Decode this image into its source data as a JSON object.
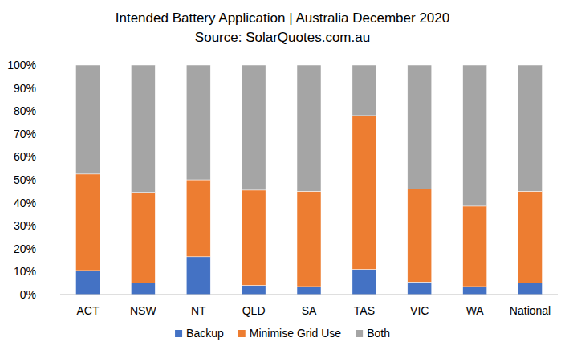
{
  "chart_data": {
    "type": "bar",
    "stacked": true,
    "title": "Intended Battery Application | Australia December 2020",
    "subtitle": "Source: SolarQuotes.com.au",
    "categories": [
      "ACT",
      "NSW",
      "NT",
      "QLD",
      "SA",
      "TAS",
      "VIC",
      "WA",
      "National"
    ],
    "series": [
      {
        "name": "Backup",
        "color": "#4472c4",
        "values": [
          10.5,
          5,
          16.5,
          4,
          3.5,
          11,
          5.5,
          3.5,
          5
        ]
      },
      {
        "name": "Minimise Grid Use",
        "color": "#ed7d31",
        "values": [
          42,
          39.5,
          33.5,
          41.5,
          41.5,
          67,
          40.5,
          35,
          40
        ]
      },
      {
        "name": "Both",
        "color": "#a5a5a5",
        "values": [
          47.5,
          55.5,
          50,
          54.5,
          55,
          22,
          54,
          61.5,
          55
        ]
      }
    ],
    "ylim": [
      0,
      100
    ],
    "yticks": [
      {
        "value": 0,
        "label": "0%"
      },
      {
        "value": 10,
        "label": "10%"
      },
      {
        "value": 20,
        "label": "20%"
      },
      {
        "value": 30,
        "label": "30%"
      },
      {
        "value": 40,
        "label": "40%"
      },
      {
        "value": 50,
        "label": "50%"
      },
      {
        "value": 60,
        "label": "60%"
      },
      {
        "value": 70,
        "label": "70%"
      },
      {
        "value": 80,
        "label": "80%"
      },
      {
        "value": 90,
        "label": "90%"
      },
      {
        "value": 100,
        "label": "100%"
      }
    ],
    "grid": false,
    "legend": "bottom"
  }
}
